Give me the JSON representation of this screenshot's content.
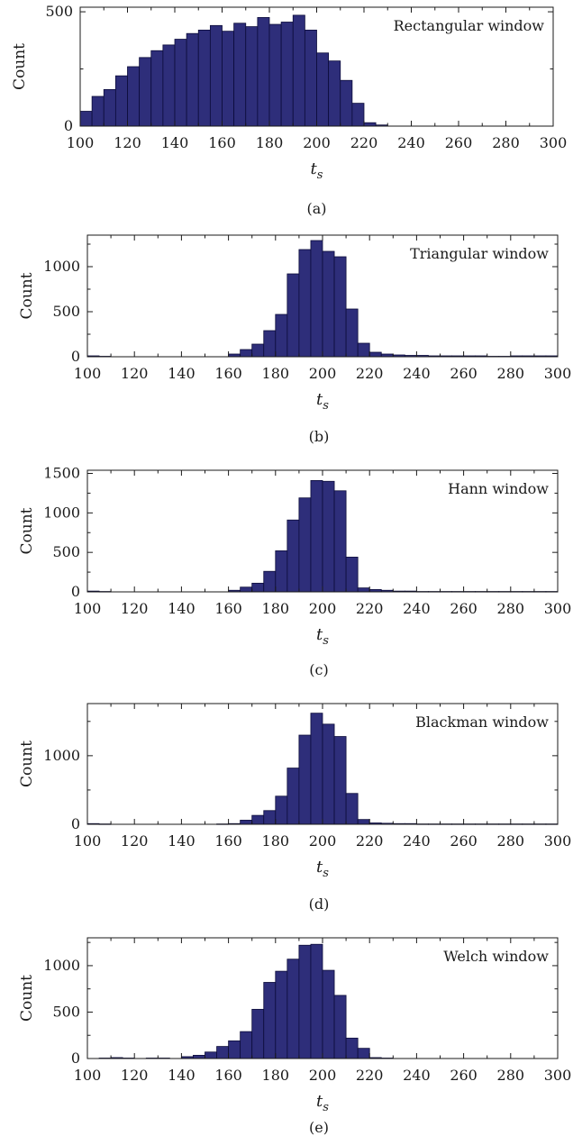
{
  "figure": {
    "panel_captions": [
      "(a)",
      "(b)",
      "(c)",
      "(d)",
      "(e)"
    ]
  },
  "colors": {
    "bar_fill": "#2e2e7a",
    "bar_stroke": "#0c0c3a",
    "axis": "#1a1a1a"
  },
  "chart_data": [
    {
      "type": "bar",
      "title": "Rectangular window",
      "xlabel": "t_s",
      "ylabel": "Count",
      "xlim": [
        100,
        300
      ],
      "ylim": [
        0,
        520
      ],
      "yticks": [
        0,
        500
      ],
      "xticks": [
        100,
        120,
        140,
        160,
        180,
        200,
        220,
        240,
        260,
        280,
        300
      ],
      "bin_width": 5,
      "bin_starts": [
        100,
        105,
        110,
        115,
        120,
        125,
        130,
        135,
        140,
        145,
        150,
        155,
        160,
        165,
        170,
        175,
        180,
        185,
        190,
        195,
        200,
        205,
        210,
        215,
        220,
        225,
        230,
        235,
        240,
        245,
        250,
        255,
        260,
        265,
        270,
        275,
        280,
        285,
        290,
        295
      ],
      "values": [
        65,
        130,
        160,
        220,
        260,
        300,
        330,
        355,
        380,
        405,
        420,
        440,
        415,
        450,
        435,
        475,
        445,
        455,
        485,
        420,
        320,
        285,
        200,
        100,
        15,
        5,
        0,
        0,
        0,
        0,
        0,
        0,
        0,
        0,
        0,
        0,
        0,
        0,
        0,
        0
      ]
    },
    {
      "type": "bar",
      "title": "Triangular window",
      "xlabel": "t_s",
      "ylabel": "Count",
      "xlim": [
        100,
        300
      ],
      "ylim": [
        0,
        1350
      ],
      "yticks": [
        0,
        500,
        1000
      ],
      "xticks": [
        100,
        120,
        140,
        160,
        180,
        200,
        220,
        240,
        260,
        280,
        300
      ],
      "bin_width": 5,
      "bin_starts": [
        100,
        105,
        110,
        115,
        120,
        125,
        130,
        135,
        140,
        145,
        150,
        155,
        160,
        165,
        170,
        175,
        180,
        185,
        190,
        195,
        200,
        205,
        210,
        215,
        220,
        225,
        230,
        235,
        240,
        245,
        250,
        255,
        260,
        265,
        270,
        275,
        280,
        285,
        290,
        295
      ],
      "values": [
        10,
        5,
        0,
        0,
        0,
        0,
        0,
        0,
        0,
        0,
        0,
        0,
        30,
        80,
        140,
        290,
        470,
        920,
        1190,
        1290,
        1170,
        1110,
        530,
        150,
        50,
        30,
        20,
        15,
        15,
        10,
        10,
        10,
        10,
        10,
        5,
        5,
        10,
        10,
        10,
        10
      ]
    },
    {
      "type": "bar",
      "title": "Hann window",
      "xlabel": "t_s",
      "ylabel": "Count",
      "xlim": [
        100,
        300
      ],
      "ylim": [
        0,
        1540
      ],
      "yticks": [
        0,
        500,
        1000,
        1500
      ],
      "xticks": [
        100,
        120,
        140,
        160,
        180,
        200,
        220,
        240,
        260,
        280,
        300
      ],
      "bin_width": 5,
      "bin_starts": [
        100,
        105,
        110,
        115,
        120,
        125,
        130,
        135,
        140,
        145,
        150,
        155,
        160,
        165,
        170,
        175,
        180,
        185,
        190,
        195,
        200,
        205,
        210,
        215,
        220,
        225,
        230,
        235,
        240,
        245,
        250,
        255,
        260,
        265,
        270,
        275,
        280,
        285,
        290,
        295
      ],
      "values": [
        10,
        5,
        0,
        0,
        0,
        0,
        0,
        0,
        0,
        0,
        0,
        0,
        20,
        60,
        110,
        260,
        520,
        910,
        1190,
        1410,
        1400,
        1280,
        440,
        50,
        30,
        20,
        10,
        10,
        5,
        5,
        5,
        5,
        5,
        5,
        5,
        5,
        5,
        5,
        5,
        5
      ]
    },
    {
      "type": "bar",
      "title": "Blackman window",
      "xlabel": "t_s",
      "ylabel": "Count",
      "xlim": [
        100,
        300
      ],
      "ylim": [
        0,
        1760
      ],
      "yticks": [
        0,
        1000
      ],
      "xticks": [
        100,
        120,
        140,
        160,
        180,
        200,
        220,
        240,
        260,
        280,
        300
      ],
      "bin_width": 5,
      "bin_starts": [
        100,
        105,
        110,
        115,
        120,
        125,
        130,
        135,
        140,
        145,
        150,
        155,
        160,
        165,
        170,
        175,
        180,
        185,
        190,
        195,
        200,
        205,
        210,
        215,
        220,
        225,
        230,
        235,
        240,
        245,
        250,
        255,
        260,
        265,
        270,
        275,
        280,
        285,
        290,
        295
      ],
      "values": [
        10,
        5,
        0,
        0,
        0,
        0,
        0,
        0,
        0,
        0,
        0,
        5,
        10,
        60,
        130,
        200,
        410,
        820,
        1300,
        1620,
        1460,
        1280,
        450,
        70,
        20,
        15,
        10,
        10,
        5,
        5,
        5,
        5,
        5,
        5,
        5,
        5,
        5,
        5,
        5,
        5
      ]
    },
    {
      "type": "bar",
      "title": "Welch window",
      "xlabel": "t_s",
      "ylabel": "Count",
      "xlim": [
        100,
        300
      ],
      "ylim": [
        0,
        1300
      ],
      "yticks": [
        0,
        500,
        1000
      ],
      "xticks": [
        100,
        120,
        140,
        160,
        180,
        200,
        220,
        240,
        260,
        280,
        300
      ],
      "bin_width": 5,
      "bin_starts": [
        100,
        105,
        110,
        115,
        120,
        125,
        130,
        135,
        140,
        145,
        150,
        155,
        160,
        165,
        170,
        175,
        180,
        185,
        190,
        195,
        200,
        205,
        210,
        215,
        220,
        225,
        230,
        235,
        240,
        245,
        250,
        255,
        260,
        265,
        270,
        275,
        280,
        285,
        290,
        295
      ],
      "values": [
        0,
        5,
        10,
        5,
        0,
        5,
        5,
        0,
        20,
        35,
        70,
        130,
        190,
        290,
        530,
        820,
        940,
        1070,
        1220,
        1230,
        950,
        680,
        220,
        110,
        10,
        5,
        0,
        0,
        0,
        0,
        0,
        0,
        0,
        0,
        0,
        0,
        0,
        0,
        0,
        0
      ]
    }
  ]
}
